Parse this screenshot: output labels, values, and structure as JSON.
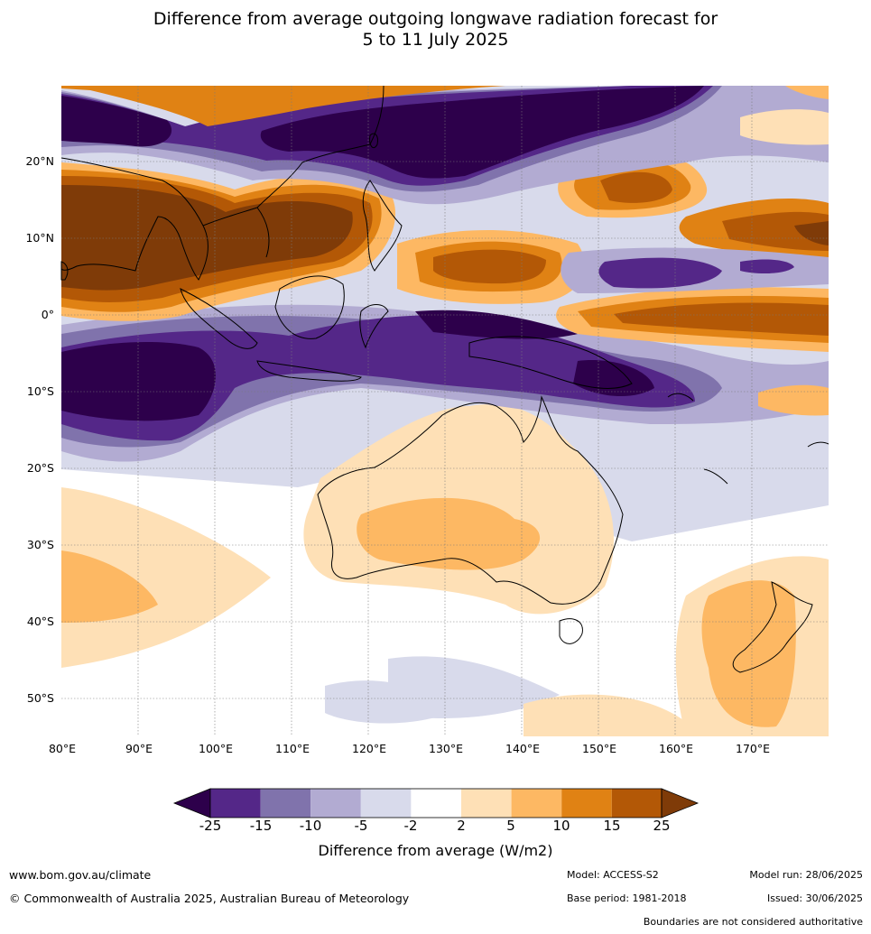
{
  "title_line1": "Difference from average outgoing longwave radiation forecast for",
  "title_line2": "5 to 11 July 2025",
  "lat_labels": [
    "20°N",
    "10°N",
    "0°",
    "10°S",
    "20°S",
    "30°S",
    "40°S",
    "50°S"
  ],
  "lon_labels": [
    "80°E",
    "90°E",
    "100°E",
    "110°E",
    "120°E",
    "130°E",
    "140°E",
    "150°E",
    "160°E",
    "170°E"
  ],
  "colorbar": {
    "labels": [
      "-25",
      "-15",
      "-10",
      "-5",
      "-2",
      "2",
      "5",
      "10",
      "15",
      "25"
    ],
    "colors": [
      "#2d004b",
      "#542788",
      "#8073ac",
      "#b2abd2",
      "#d8daeb",
      "#ffffff",
      "#fee0b6",
      "#fdb863",
      "#e08214",
      "#b35806",
      "#7f3b08"
    ],
    "title": "Difference from average (W/m2)"
  },
  "footer": {
    "url": "www.bom.gov.au/climate",
    "copyright": "© Commonwealth of Australia 2025, Australian Bureau of Meteorology",
    "model": "Model: ACCESS-S2",
    "base_period": "Base period: 1981-2018",
    "model_run": "Model run: 28/06/2025",
    "issued": "Issued: 30/06/2025",
    "disclaimer": "Boundaries are not considered authoritative"
  }
}
